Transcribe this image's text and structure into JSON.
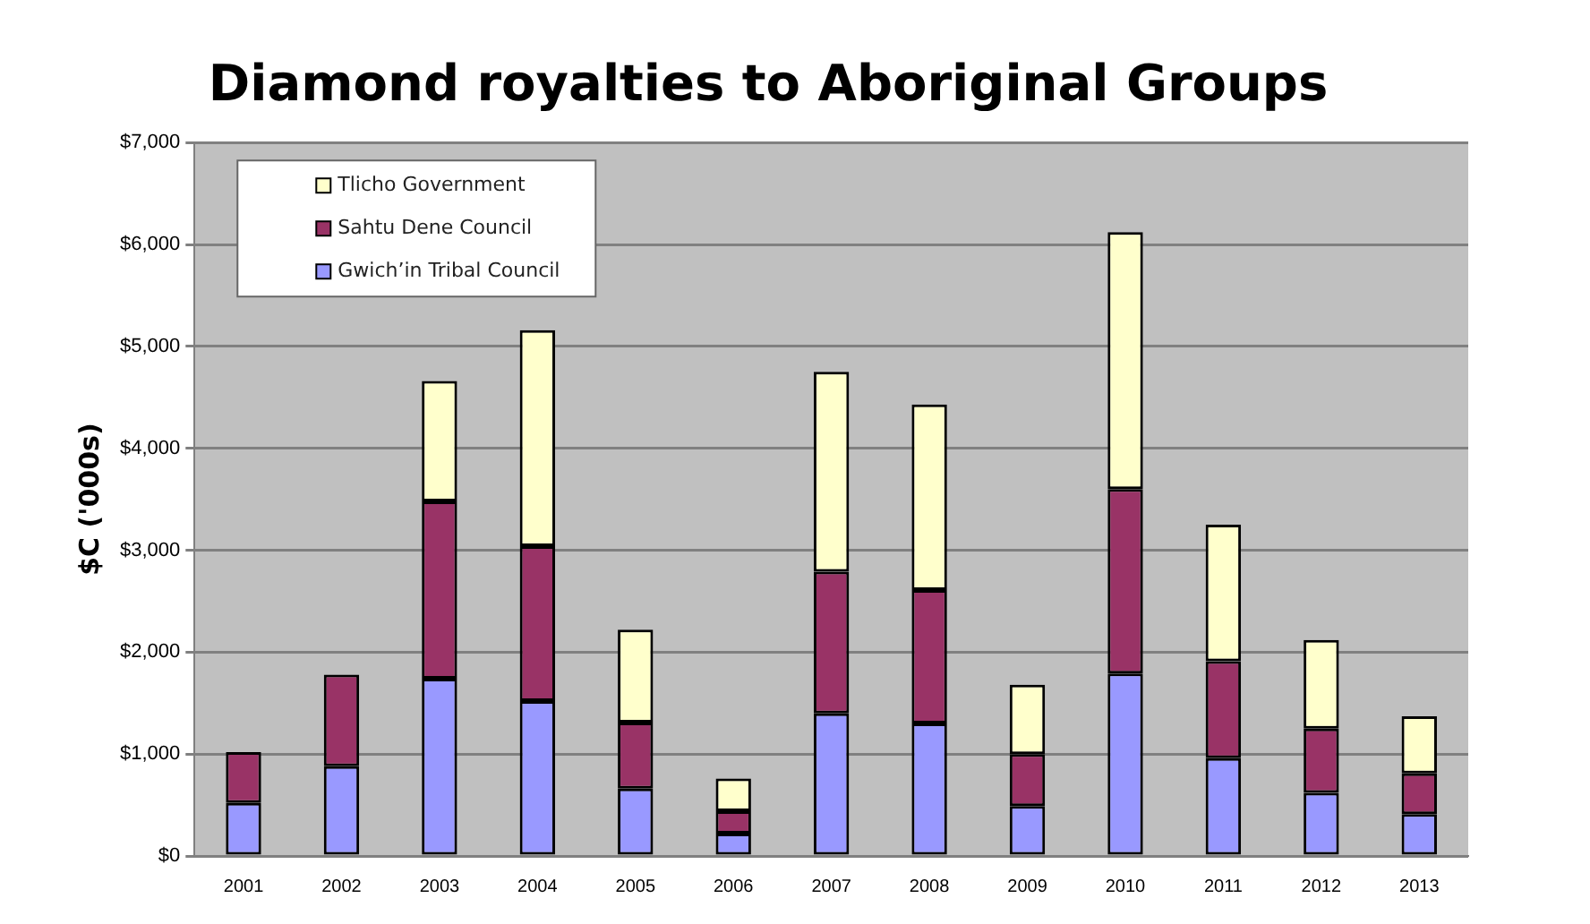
{
  "chart_data": {
    "type": "bar",
    "title": "Diamond royalties to Aboriginal Groups",
    "ylabel": "$C ('000s)",
    "categories": [
      "2001",
      "2002",
      "2003",
      "2004",
      "2005",
      "2006",
      "2007",
      "2008",
      "2009",
      "2010",
      "2011",
      "2012",
      "2013"
    ],
    "series": [
      {
        "name": "Gwich’in Tribal Council",
        "color": "#9999ff",
        "values": [
          520,
          880,
          1740,
          1520,
          660,
          220,
          1400,
          1300,
          490,
          1790,
          960,
          620,
          410
        ]
      },
      {
        "name": "Sahtu Dene Council",
        "color": "#993366",
        "values": [
          500,
          900,
          1740,
          1520,
          650,
          220,
          1390,
          1310,
          510,
          1810,
          950,
          630,
          400
        ]
      },
      {
        "name": "Tlicho Government",
        "color": "#ffffcc",
        "values": [
          null,
          null,
          1180,
          2120,
          910,
          320,
          1960,
          1820,
          680,
          2520,
          1340,
          870,
          560
        ]
      }
    ],
    "stacked": true,
    "ylim": [
      0,
      7000
    ],
    "yticks": [
      {
        "value": 0,
        "label": "$0"
      },
      {
        "value": 1000,
        "label": "$1,000"
      },
      {
        "value": 2000,
        "label": "$2,000"
      },
      {
        "value": 3000,
        "label": "$3,000"
      },
      {
        "value": 4000,
        "label": "$4,000"
      },
      {
        "value": 5000,
        "label": "$5,000"
      },
      {
        "value": 6000,
        "label": "$6,000"
      },
      {
        "value": 7000,
        "label": "$7,000"
      }
    ],
    "grid": "y",
    "legend": "top left"
  }
}
